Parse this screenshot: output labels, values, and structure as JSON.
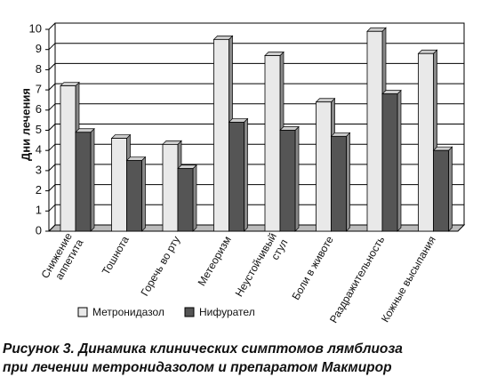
{
  "chart_data": {
    "type": "bar",
    "y_label": "Дни лечения",
    "categories": [
      "Снижение\nаппетита",
      "Тошнота",
      "Горечь во рту",
      "Метеоризм",
      "Неустойчивый\nстул",
      "Боли в животе",
      "Раздражительность",
      "Кожные высыпания"
    ],
    "series": [
      {
        "name": "Метронидазол",
        "color": "#e9e9e9",
        "values": [
          7.2,
          4.6,
          4.3,
          9.5,
          8.7,
          6.4,
          9.9,
          8.8
        ]
      },
      {
        "name": "Нифурател",
        "color": "#555555",
        "values": [
          4.9,
          3.5,
          3.1,
          5.4,
          5.0,
          4.7,
          6.8,
          4.0
        ]
      }
    ],
    "ylim": [
      0,
      10
    ],
    "yticks": [
      0,
      1,
      2,
      3,
      4,
      5,
      6,
      7,
      8,
      9,
      10
    ],
    "grid": true,
    "caption": [
      "Рисунок 3. Динамика клинических симптомов лямблиоза",
      "при лечении метронидазолом и препаратом Макмирор"
    ]
  }
}
